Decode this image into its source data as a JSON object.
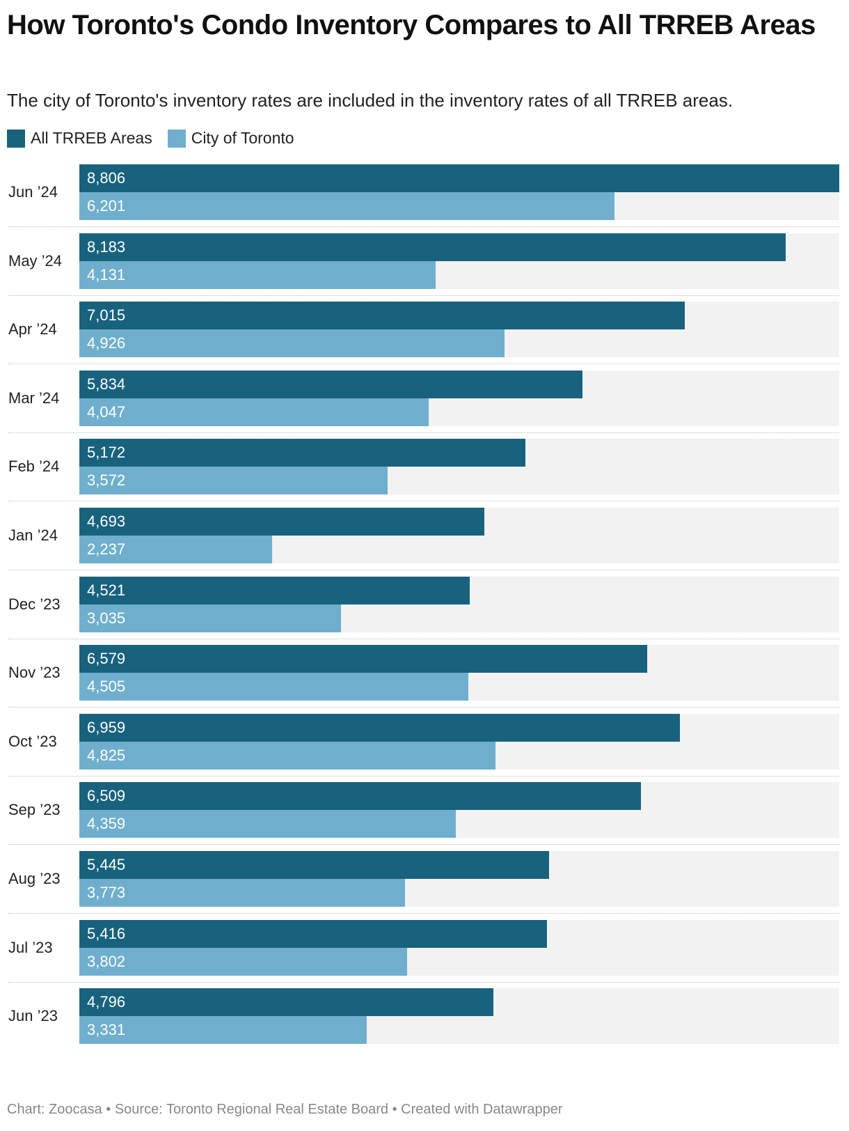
{
  "title": "How Toronto's Condo Inventory Compares to All TRREB Areas",
  "subtitle": "The city of Toronto's inventory rates are included in the inventory rates of all TRREB areas.",
  "footer": "Chart: Zoocasa • Source: Toronto Regional Real Estate Board • Created with Datawrapper",
  "colors": {
    "all_trreb": "#18627e",
    "city_of_toronto": "#6fafcd",
    "track": "#f2f2f2"
  },
  "chart_data": {
    "type": "bar",
    "orientation": "horizontal",
    "title": "How Toronto's Condo Inventory Compares to All TRREB Areas",
    "xlim": [
      0,
      8806
    ],
    "legend_position": "top-left",
    "categories": [
      "Jun ’24",
      "May ’24",
      "Apr ’24",
      "Mar ’24",
      "Feb ’24",
      "Jan ’24",
      "Dec ’23",
      "Nov ’23",
      "Oct ’23",
      "Sep ’23",
      "Aug ’23",
      "Jul ’23",
      "Jun ’23"
    ],
    "series": [
      {
        "name": "All TRREB Areas",
        "values": [
          8806,
          8183,
          7015,
          5834,
          5172,
          4693,
          4521,
          6579,
          6959,
          6509,
          5445,
          5416,
          4796
        ],
        "labels": [
          "8,806",
          "8,183",
          "7,015",
          "5,834",
          "5,172",
          "4,693",
          "4,521",
          "6,579",
          "6,959",
          "6,509",
          "5,445",
          "5,416",
          "4,796"
        ]
      },
      {
        "name": "City of Toronto",
        "values": [
          6201,
          4131,
          4926,
          4047,
          3572,
          2237,
          3035,
          4505,
          4825,
          4359,
          3773,
          3802,
          3331
        ],
        "labels": [
          "6,201",
          "4,131",
          "4,926",
          "4,047",
          "3,572",
          "2,237",
          "3,035",
          "4,505",
          "4,825",
          "4,359",
          "3,773",
          "3,802",
          "3,331"
        ]
      }
    ]
  }
}
